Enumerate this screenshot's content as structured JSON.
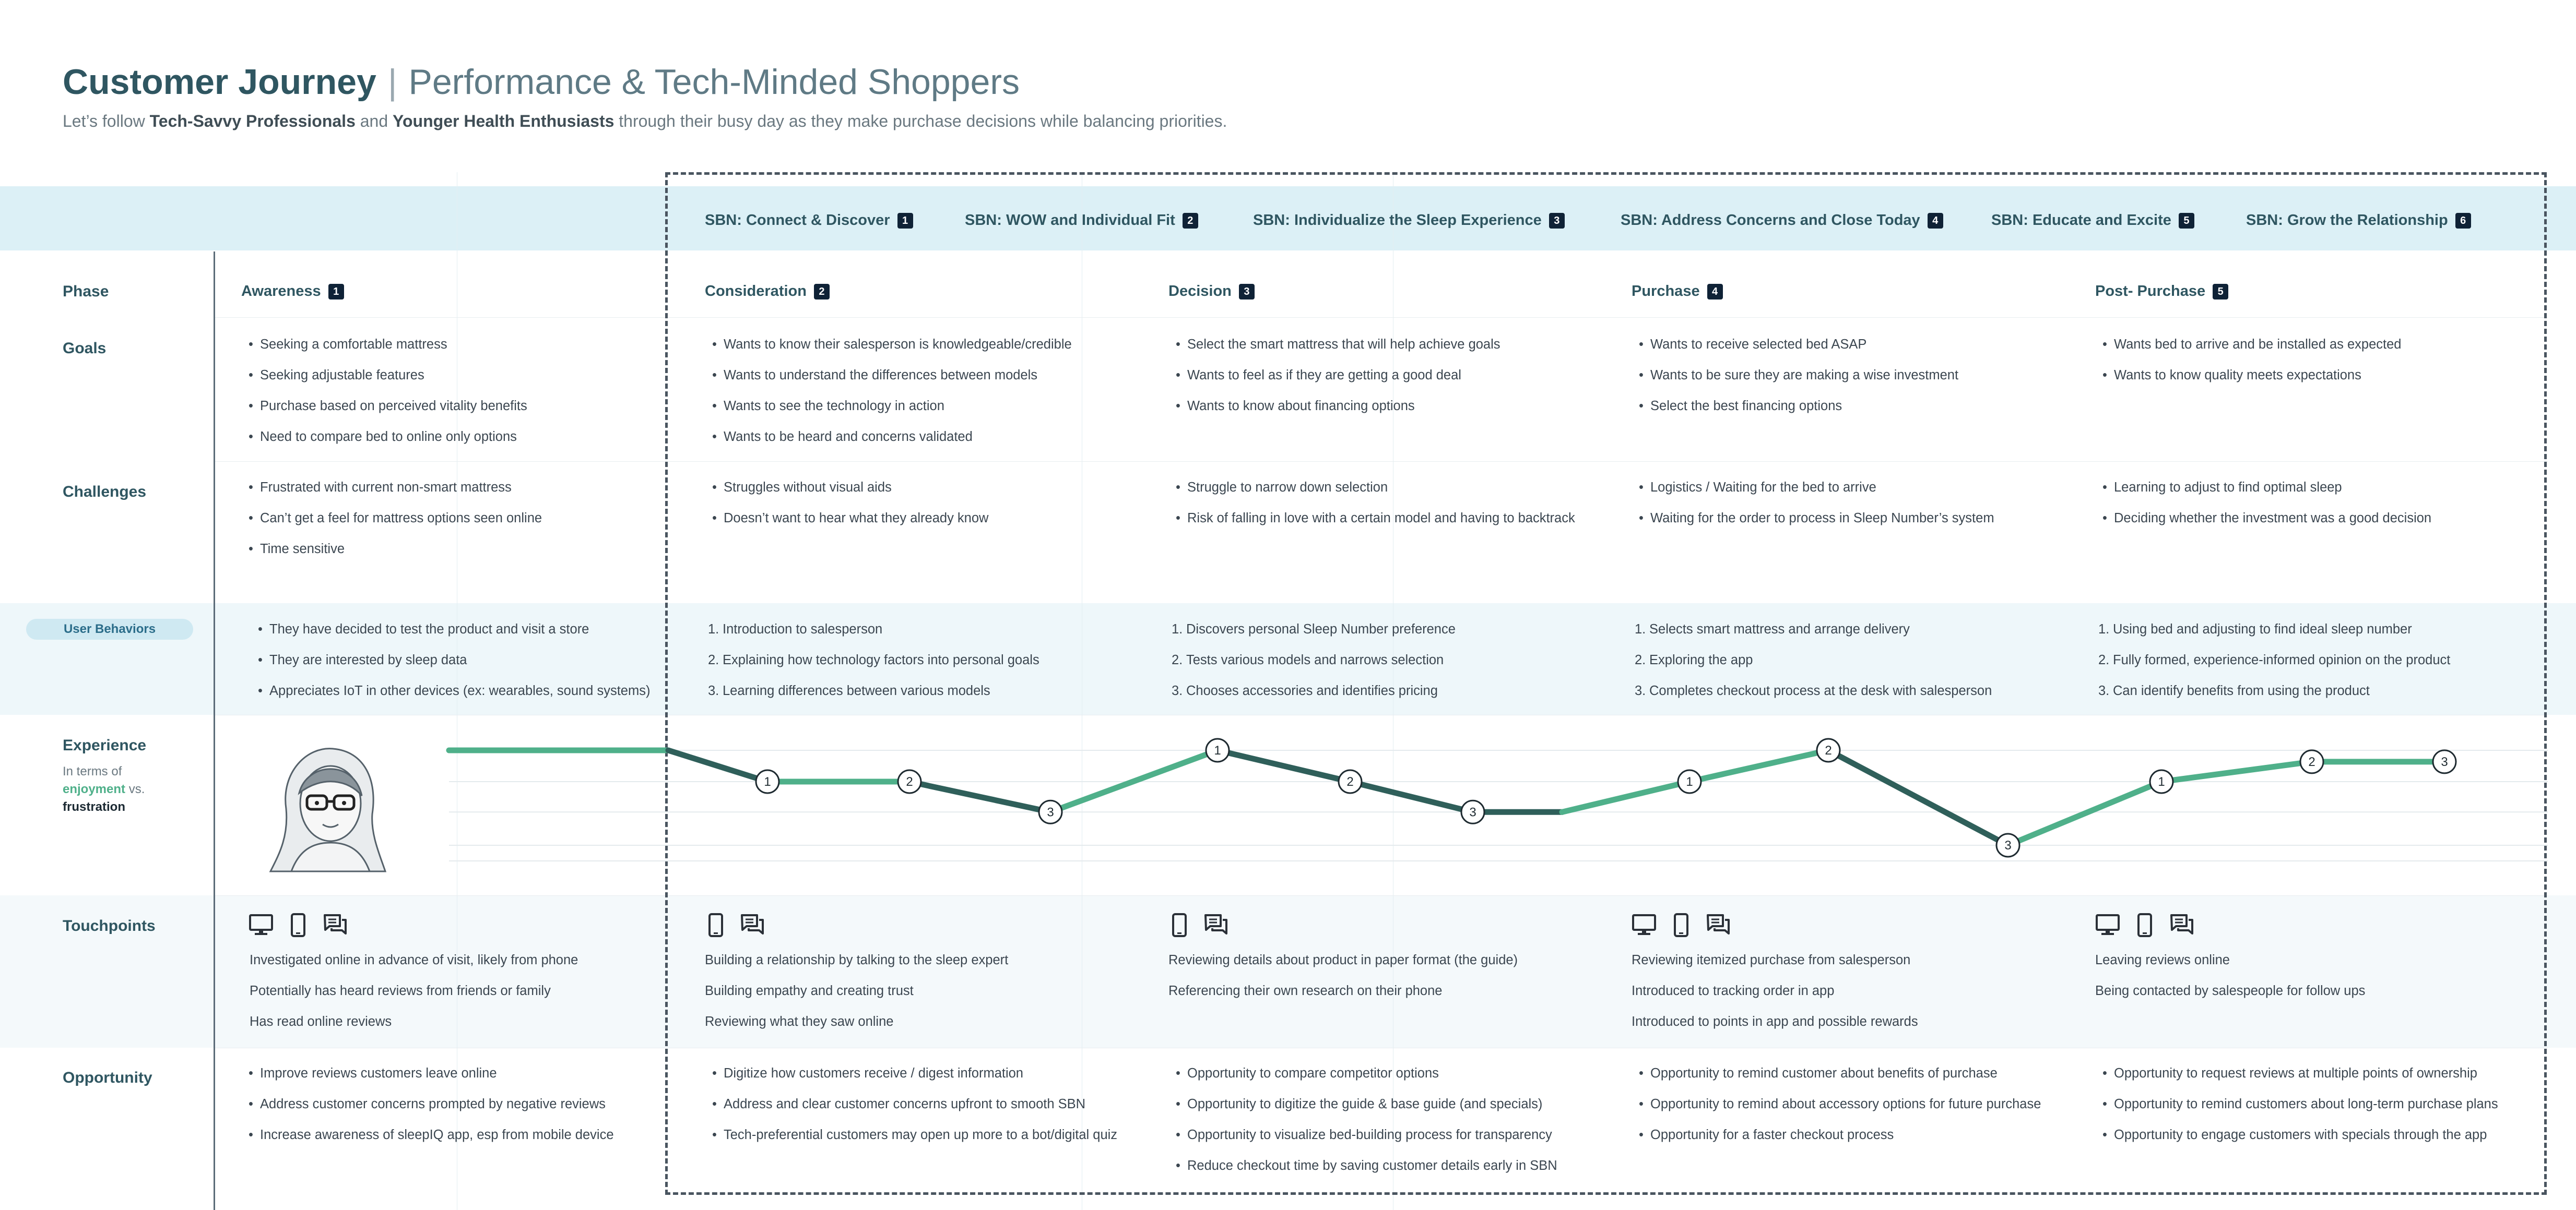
{
  "header": {
    "title_bold": "Customer Journey",
    "title_sep": "|",
    "title_rest": "Performance & Tech-Minded Shoppers",
    "subtitle_pre": "Let’s follow ",
    "subtitle_b1": "Tech-Savvy Professionals",
    "subtitle_mid": " and ",
    "subtitle_b2": "Younger Health Enthusiasts",
    "subtitle_post": " through their busy day as they make purchase decisions while balancing priorities."
  },
  "sbn": [
    {
      "label": "SBN: Connect & Discover",
      "num": "1"
    },
    {
      "label": "SBN: WOW and Individual Fit",
      "num": "2"
    },
    {
      "label": "SBN: Individualize the Sleep Experience",
      "num": "3"
    },
    {
      "label": "SBN: Address Concerns and Close Today",
      "num": "4"
    },
    {
      "label": "SBN: Educate and Excite",
      "num": "5"
    },
    {
      "label": "SBN: Grow the Relationship",
      "num": "6"
    }
  ],
  "row_labels": {
    "phase": "Phase",
    "goals": "Goals",
    "challenges": "Challenges",
    "user_behaviors": "User Behaviors",
    "experience": "Experience",
    "experience_sub1": "In terms of",
    "experience_enjoy": "enjoyment",
    "experience_vs": " vs.",
    "experience_frus": "frustration",
    "touchpoints": "Touchpoints",
    "opportunity": "Opportunity"
  },
  "phases": [
    {
      "name": "Awareness",
      "num": "1",
      "goals": [
        "Seeking a comfortable mattress",
        "Seeking adjustable features",
        "Purchase based on perceived vitality benefits",
        "Need to compare bed to online only options"
      ],
      "challenges": [
        "Frustrated with current non-smart mattress",
        "Can’t get a feel for mattress options seen online",
        "Time sensitive"
      ],
      "behaviors": [
        "They have decided to test the product and visit a store",
        "They are interested by sleep data",
        "Appreciates IoT in other devices (ex: wearables, sound systems)"
      ],
      "touchpoint_icons": [
        "desktop-icon",
        "phone-icon",
        "chat-icon"
      ],
      "touchpoints": [
        "Investigated online in advance of visit, likely from phone",
        "Potentially has heard reviews from friends or family",
        "Has read online reviews"
      ],
      "opportunity": [
        "Improve reviews customers leave online",
        "Address customer concerns prompted by negative reviews",
        "Increase awareness of sleepIQ app, esp from mobile device"
      ]
    },
    {
      "name": "Consideration",
      "num": "2",
      "goals": [
        "Wants to know their salesperson is knowledgeable/credible",
        "Wants to understand the differences between models",
        "Wants to see the technology in action",
        "Wants to be heard and concerns validated"
      ],
      "challenges": [
        "Struggles without visual aids",
        "Doesn’t want to hear what they already know"
      ],
      "behaviors": [
        "Introduction to salesperson",
        "Explaining how technology factors into personal goals",
        "Learning differences between various models"
      ],
      "touchpoint_icons": [
        "phone-icon",
        "chat-icon"
      ],
      "touchpoints": [
        "Building a relationship by talking to the sleep expert",
        "Building empathy and creating trust",
        "Reviewing what they saw online"
      ],
      "opportunity": [
        "Digitize how customers receive / digest information",
        "Address and clear customer concerns upfront to smooth SBN",
        "Tech-preferential customers may open up more to a bot/digital quiz"
      ]
    },
    {
      "name": "Decision",
      "num": "3",
      "goals": [
        "Select the smart mattress that will help achieve goals",
        "Wants to feel as if they are getting a good deal",
        "Wants to know about financing options"
      ],
      "challenges": [
        "Struggle to narrow down selection",
        "Risk of falling in love with a certain model and having to backtrack"
      ],
      "behaviors": [
        "Discovers personal Sleep Number preference",
        "Tests various models and narrows selection",
        "Chooses accessories and identifies pricing"
      ],
      "touchpoint_icons": [
        "phone-icon",
        "chat-icon"
      ],
      "touchpoints": [
        "Reviewing details about product in paper format (the guide)",
        "Referencing their own research on their phone"
      ],
      "opportunity": [
        "Opportunity to compare competitor options",
        "Opportunity to digitize the guide & base guide (and specials)",
        "Opportunity to visualize bed-building process for transparency",
        "Reduce checkout time by saving customer details early in SBN"
      ]
    },
    {
      "name": "Purchase",
      "num": "4",
      "goals": [
        "Wants to receive selected bed ASAP",
        "Wants to be sure they are making a wise investment",
        "Select the best financing options"
      ],
      "challenges": [
        "Logistics / Waiting for the bed to arrive",
        "Waiting for the order to process in Sleep Number’s system"
      ],
      "behaviors": [
        "Selects smart mattress and arrange delivery",
        "Exploring the app",
        "Completes checkout process at the desk with salesperson"
      ],
      "touchpoint_icons": [
        "desktop-icon",
        "phone-icon",
        "chat-icon"
      ],
      "touchpoints": [
        "Reviewing itemized purchase from salesperson",
        "Introduced to tracking order in app",
        "Introduced to points in app and possible rewards"
      ],
      "opportunity": [
        "Opportunity to remind customer about benefits of purchase",
        "Opportunity to remind about accessory options for future purchase",
        "Opportunity for a faster checkout process"
      ]
    },
    {
      "name": "Post- Purchase",
      "num": "5",
      "goals": [
        "Wants bed to arrive and be installed as expected",
        "Wants to know quality meets expectations"
      ],
      "challenges": [
        "Learning to adjust to find optimal sleep",
        "Deciding whether the investment was a good decision"
      ],
      "behaviors": [
        "Using bed and adjusting to find ideal sleep number",
        "Fully formed, experience-informed opinion on the product",
        "Can identify benefits from using the product"
      ],
      "touchpoint_icons": [
        "desktop-icon",
        "phone-icon",
        "chat-icon"
      ],
      "touchpoints": [
        "Leaving reviews online",
        "Being contacted by salespeople for follow ups"
      ],
      "opportunity": [
        "Opportunity to request reviews at multiple points of ownership",
        "Opportunity to remind customers about long-term purchase plans",
        "Opportunity to engage customers with specials through the app"
      ]
    }
  ],
  "experience_markers": [
    {
      "label": "1",
      "level": 0.33
    },
    {
      "label": "2",
      "level": 0.33
    },
    {
      "label": "3",
      "level": 0.65
    },
    {
      "label": "1",
      "level": 0.0
    },
    {
      "label": "2",
      "level": 0.33
    },
    {
      "label": "3",
      "level": 0.65
    },
    {
      "label": "1",
      "level": 0.33
    },
    {
      "label": "2",
      "level": 0.0
    },
    {
      "label": "3",
      "level": 1.0
    },
    {
      "label": "1",
      "level": 0.33
    },
    {
      "label": "2",
      "level": 0.12
    },
    {
      "label": "3",
      "level": 0.12
    }
  ],
  "colors": {
    "enjoyment": "#4fb08a",
    "frustration": "#2f5f5a",
    "band": "#dff0f6",
    "header_band": "#dcf0f6",
    "text_dark": "#2f5661",
    "badge": "#0f2236"
  }
}
